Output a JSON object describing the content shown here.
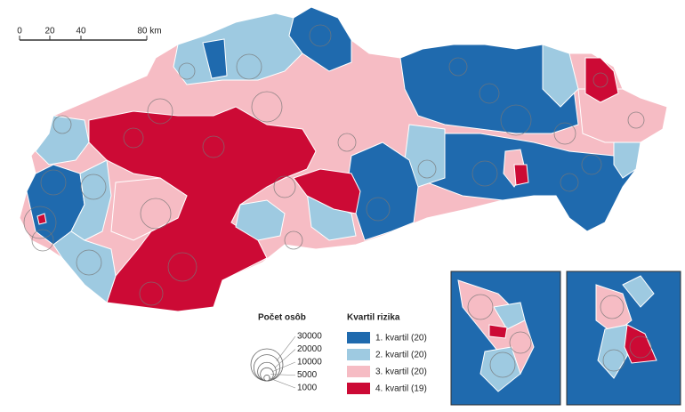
{
  "scale_bar": {
    "labels": [
      "0",
      "20",
      "40",
      "80 km"
    ]
  },
  "legend_size": {
    "title": "Počet osôb",
    "values": [
      30000,
      20000,
      10000,
      5000,
      1000
    ]
  },
  "legend_risk": {
    "title": "Kvartil rizika",
    "items": [
      {
        "label": "1. kvartil (20)",
        "color": "#1f6aae"
      },
      {
        "label": "2. kvartil (20)",
        "color": "#9ecae1"
      },
      {
        "label": "3. kvartil (20)",
        "color": "#f6bcc4"
      },
      {
        "label": "4. kvartil (19)",
        "color": "#cc0a35"
      }
    ]
  }
}
